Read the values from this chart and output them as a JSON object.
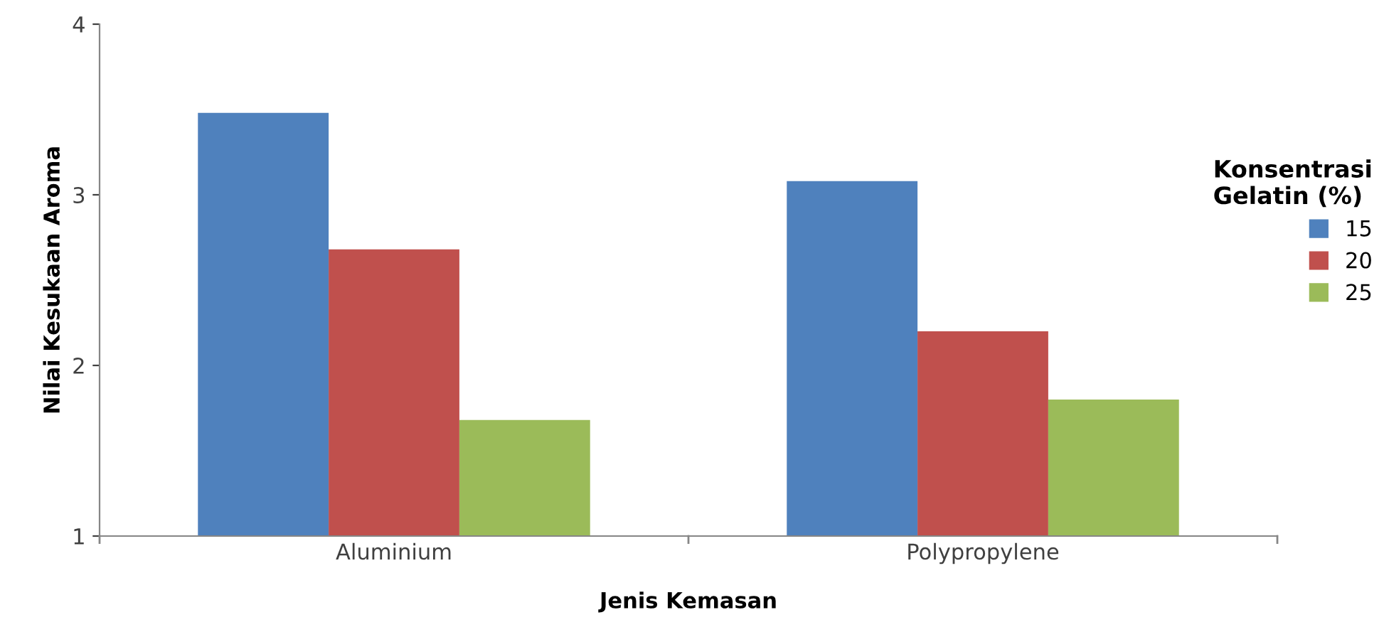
{
  "chart_data": {
    "type": "bar",
    "xlabel": "Jenis Kemasan",
    "ylabel": "Nilai Kesukaan Aroma",
    "legend_title": "Konsentrasi\nGelatin (%)",
    "categories": [
      "Aluminium",
      "Polypropylene"
    ],
    "series": [
      {
        "name": "15",
        "color": "#4f81bd",
        "values": [
          3.48,
          3.08
        ]
      },
      {
        "name": "20",
        "color": "#c0504d",
        "values": [
          2.68,
          2.2
        ]
      },
      {
        "name": "25",
        "color": "#9bbb59",
        "values": [
          1.68,
          1.8
        ]
      }
    ],
    "ylim": [
      1,
      4
    ],
    "yticks": [
      1,
      2,
      3,
      4
    ],
    "grid": false,
    "legend": "right"
  }
}
